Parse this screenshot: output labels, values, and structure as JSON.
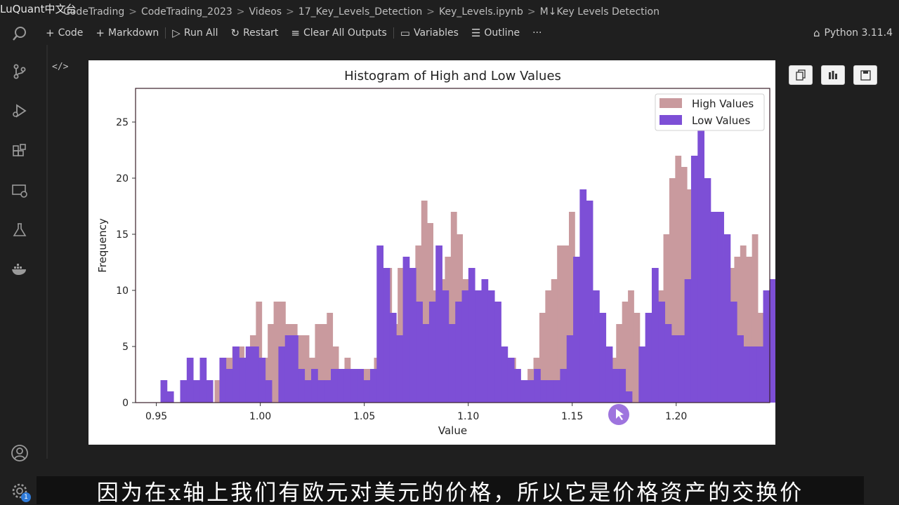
{
  "breadcrumb": {
    "watermark": "LuQuant中文台",
    "items": [
      "CodeTrading",
      "CodeTrading_2023",
      "Videos",
      "17_Key_Levels_Detection",
      "Key_Levels.ipynb",
      "M↓Key Levels Detection"
    ],
    "separator": ">"
  },
  "toolbar": {
    "code": "Code",
    "markdown": "Markdown",
    "run_all": "Run All",
    "restart": "Restart",
    "clear_all": "Clear All Outputs",
    "variables": "Variables",
    "outline": "Outline",
    "more": "···",
    "kernel": "Python 3.11.4"
  },
  "activity": [
    "search-icon",
    "source-control-icon",
    "run-debug-icon",
    "extensions-icon",
    "remote-explorer-icon",
    "testing-icon",
    "docker-icon",
    "account-icon",
    "settings-gear-icon"
  ],
  "activity_badge": "1",
  "code_toggle": "</>",
  "subtitle": "因为在x轴上我们有欧元对美元的价格，所以它是价格资产的交换价",
  "colors": {
    "high": "#c99a9e",
    "low": "#7d4fd6",
    "subtitle_bg": "#111111"
  },
  "chart_data": {
    "type": "bar",
    "title": "Histogram of High and Low Values",
    "xlabel": "Value",
    "ylabel": "Frequency",
    "xlim": [
      0.94,
      1.245
    ],
    "ylim": [
      0,
      28
    ],
    "xticks": [
      0.95,
      1.0,
      1.05,
      1.1,
      1.15,
      1.2
    ],
    "xtick_labels": [
      "0.95",
      "1.00",
      "1.05",
      "1.10",
      "1.15",
      "1.20"
    ],
    "yticks": [
      0,
      5,
      10,
      15,
      20,
      25
    ],
    "legend": {
      "position": "top-right",
      "entries": [
        "High Values",
        "Low Values"
      ]
    },
    "series": [
      {
        "name": "High Values",
        "bin_start": 0.978,
        "bin_width": 0.00284,
        "values": [
          2,
          4,
          4,
          5,
          5,
          4,
          6,
          9,
          4,
          7,
          9,
          9,
          7,
          7,
          6,
          6,
          4,
          7,
          7,
          8,
          5,
          3,
          4,
          3,
          3,
          3,
          3,
          4,
          8,
          12,
          7,
          12,
          10,
          10,
          14,
          18,
          16,
          10,
          11,
          13,
          17,
          15,
          11,
          10,
          8,
          7,
          6,
          6,
          4,
          3,
          4,
          2,
          2,
          3,
          4,
          8,
          10,
          11,
          14,
          14,
          17,
          13,
          8,
          5,
          7,
          8,
          2,
          4,
          7,
          9,
          10,
          8,
          4,
          6,
          7,
          10,
          15,
          20,
          22,
          21,
          19,
          17,
          15,
          10,
          8,
          12,
          13,
          12,
          13,
          14,
          13,
          15,
          8,
          7,
          6,
          3,
          2
        ]
      },
      {
        "name": "Low Values",
        "bin_start": 0.952,
        "bin_width": 0.00315,
        "values": [
          2,
          1,
          0,
          2,
          4,
          2,
          4,
          2,
          0,
          4,
          3,
          5,
          4,
          5,
          5,
          4,
          2,
          0,
          5,
          6,
          6,
          3,
          2,
          3,
          2,
          2,
          3,
          3,
          3,
          3,
          3,
          2,
          3,
          14,
          12,
          8,
          6,
          13,
          12,
          9,
          7,
          9,
          14,
          10,
          7,
          9,
          10,
          12,
          10,
          11,
          10,
          9,
          5,
          4,
          3,
          2,
          2,
          3,
          2,
          2,
          2,
          3,
          6,
          13,
          19,
          18,
          10,
          8,
          5,
          3,
          3,
          1,
          0,
          5,
          8,
          12,
          9,
          7,
          6,
          6,
          11,
          22,
          27,
          20,
          17,
          17,
          15,
          9,
          6,
          5,
          5,
          5,
          10,
          11,
          17,
          7,
          3,
          3,
          3
        ]
      }
    ]
  }
}
